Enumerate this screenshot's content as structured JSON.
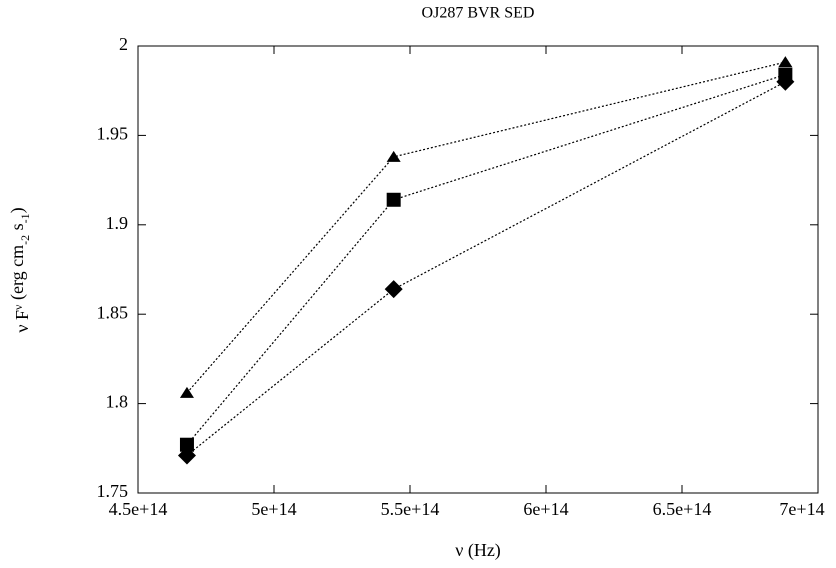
{
  "chart_data": {
    "type": "line",
    "title": "OJ287 BVR SED",
    "xlabel": "ν (Hz)",
    "ylabel_parts": [
      "ν F",
      "ν",
      " (erg cm",
      "-2",
      " s",
      "-1",
      ")"
    ],
    "x": [
      468000000000000,
      544000000000000,
      688000000000000
    ],
    "series": [
      {
        "marker": "triangle",
        "color": "#000000",
        "values": [
          1.806,
          1.938,
          1.991
        ]
      },
      {
        "marker": "square",
        "color": "#000000",
        "values": [
          1.777,
          1.914,
          1.984
        ]
      },
      {
        "marker": "diamond",
        "color": "#000000",
        "values": [
          1.771,
          1.864,
          1.98
        ]
      }
    ],
    "xlim": [
      450000000000000,
      700000000000000
    ],
    "xticks": [
      {
        "value": 450000000000000,
        "label": "4.5e+14"
      },
      {
        "value": 500000000000000,
        "label": "5e+14"
      },
      {
        "value": 550000000000000,
        "label": "5.5e+14"
      },
      {
        "value": 600000000000000,
        "label": "6e+14"
      },
      {
        "value": 650000000000000,
        "label": "6.5e+14"
      },
      {
        "value": 700000000000000,
        "label": "7e+14"
      }
    ],
    "ylim": [
      1.75,
      2
    ],
    "yticks": [
      1.75,
      1.8,
      1.85,
      1.9,
      1.95,
      2
    ],
    "grid": false
  }
}
